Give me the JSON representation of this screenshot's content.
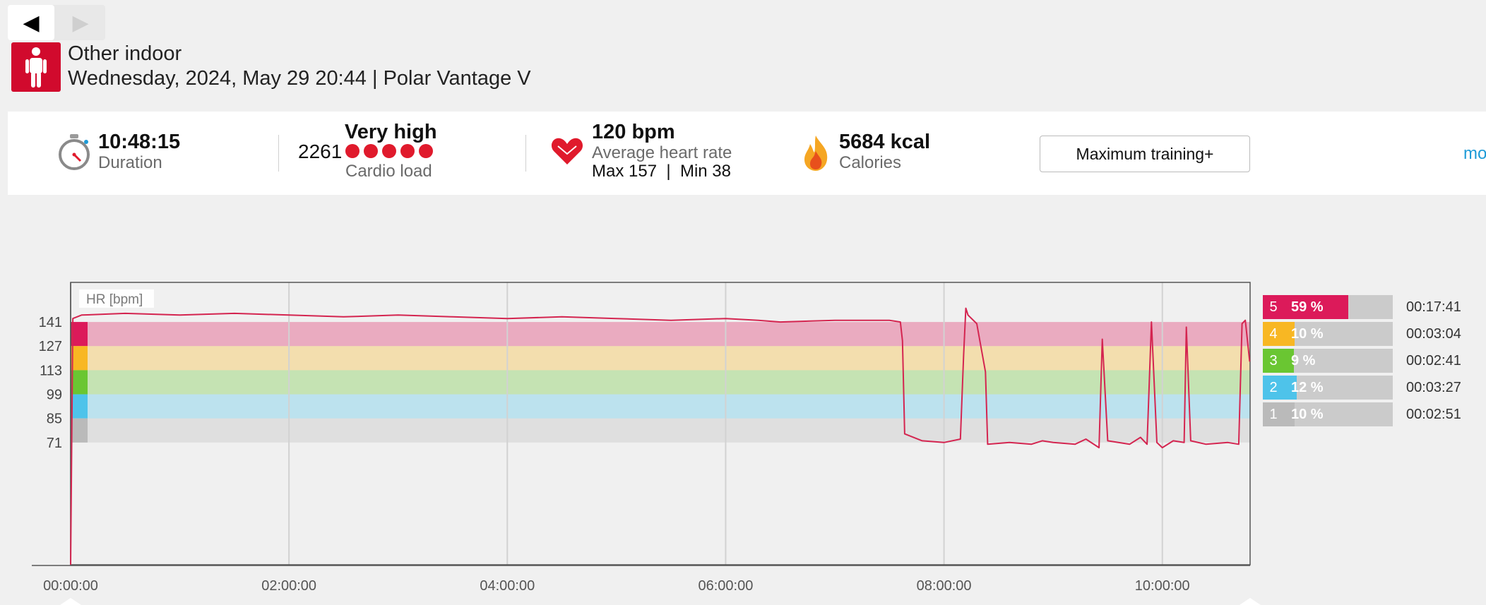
{
  "nav": {
    "back_glyph": "◀",
    "forward_glyph": "▶"
  },
  "session": {
    "title": "Other indoor",
    "subtitle": "Wednesday, 2024, May 29 20:44 | Polar Vantage V",
    "icon": "person-standing-icon"
  },
  "summary": {
    "duration": {
      "value": "10:48:15",
      "label": "Duration",
      "icon": "stopwatch-icon"
    },
    "cardio": {
      "value": "2261",
      "level": "Very high",
      "label": "Cardio load",
      "dots": 5,
      "icon": "red-dot"
    },
    "heart": {
      "value": "120 bpm",
      "label": "Average heart rate",
      "max_text": "Max 157  |  Min 38",
      "icon": "heart-icon"
    },
    "calories": {
      "value": "5684 kcal",
      "label": "Calories",
      "icon": "flame-icon"
    },
    "training_button": "Maximum training+",
    "more_link": "mo"
  },
  "colors": {
    "brand": "#d10a2d",
    "hr_line": "#d42550",
    "zone5": "#dc1a5a",
    "zone4": "#f8b723",
    "zone3": "#6ac632",
    "zone2": "#4ec3ea",
    "zone1": "#bababa",
    "link": "#1e9bd7"
  },
  "chart_data": {
    "type": "line",
    "title": "",
    "ylabel": "HR [bpm]",
    "xlabel": "",
    "x_tick_labels": [
      "00:00:00",
      "02:00:00",
      "04:00:00",
      "06:00:00",
      "08:00:00",
      "10:00:00"
    ],
    "y_tick_labels": [
      "141",
      "127",
      "113",
      "99",
      "85",
      "71"
    ],
    "xlim_hours": [
      0,
      10.804
    ],
    "ylim": [
      0,
      164
    ],
    "zone_bands": [
      {
        "zone": 5,
        "from": 127,
        "to": 141
      },
      {
        "zone": 4,
        "from": 113,
        "to": 127
      },
      {
        "zone": 3,
        "from": 99,
        "to": 113
      },
      {
        "zone": 2,
        "from": 85,
        "to": 99
      },
      {
        "zone": 1,
        "from": 71,
        "to": 85
      }
    ],
    "series": [
      {
        "x_hours": [
          0,
          0.02,
          0.1,
          0.5,
          1.0,
          1.5,
          2.0,
          2.5,
          3.0,
          3.5,
          4.0,
          4.5,
          5.0,
          5.5,
          6.0,
          6.3,
          6.5,
          7.0,
          7.5,
          7.6,
          7.62,
          7.64,
          7.8,
          8.0,
          8.15,
          8.18,
          8.2,
          8.22,
          8.3,
          8.38,
          8.4,
          8.6,
          8.8,
          8.9,
          9.0,
          9.2,
          9.3,
          9.42,
          9.45,
          9.5,
          9.7,
          9.8,
          9.86,
          9.9,
          9.95,
          10.0,
          10.1,
          10.2,
          10.22,
          10.26,
          10.4,
          10.6,
          10.7,
          10.73,
          10.76,
          10.8
        ],
        "y": [
          0,
          143,
          145,
          146,
          145,
          146,
          145,
          144,
          145,
          144,
          143,
          144,
          143,
          142,
          143,
          142,
          141,
          142,
          142,
          141,
          130,
          76,
          72,
          71,
          73,
          122,
          149,
          145,
          140,
          112,
          70,
          71,
          70,
          72,
          71,
          70,
          73,
          68,
          131,
          72,
          70,
          74,
          70,
          141,
          71,
          68,
          72,
          71,
          138,
          72,
          70,
          71,
          70,
          140,
          142,
          118
        ]
      }
    ]
  },
  "zones": [
    {
      "num": "5",
      "pct": "59 %",
      "fraction": 0.59,
      "time": "00:17:41",
      "color": "#dc1a5a"
    },
    {
      "num": "4",
      "pct": "10 %",
      "fraction": 0.1,
      "time": "00:03:04",
      "color": "#f8b723"
    },
    {
      "num": "3",
      "pct": "9 %",
      "fraction": 0.09,
      "time": "00:02:41",
      "color": "#6ac632"
    },
    {
      "num": "2",
      "pct": "12 %",
      "fraction": 0.12,
      "time": "00:03:27",
      "color": "#4ec3ea"
    },
    {
      "num": "1",
      "pct": "10 %",
      "fraction": 0.1,
      "time": "00:02:51",
      "color": "#bababa"
    }
  ]
}
